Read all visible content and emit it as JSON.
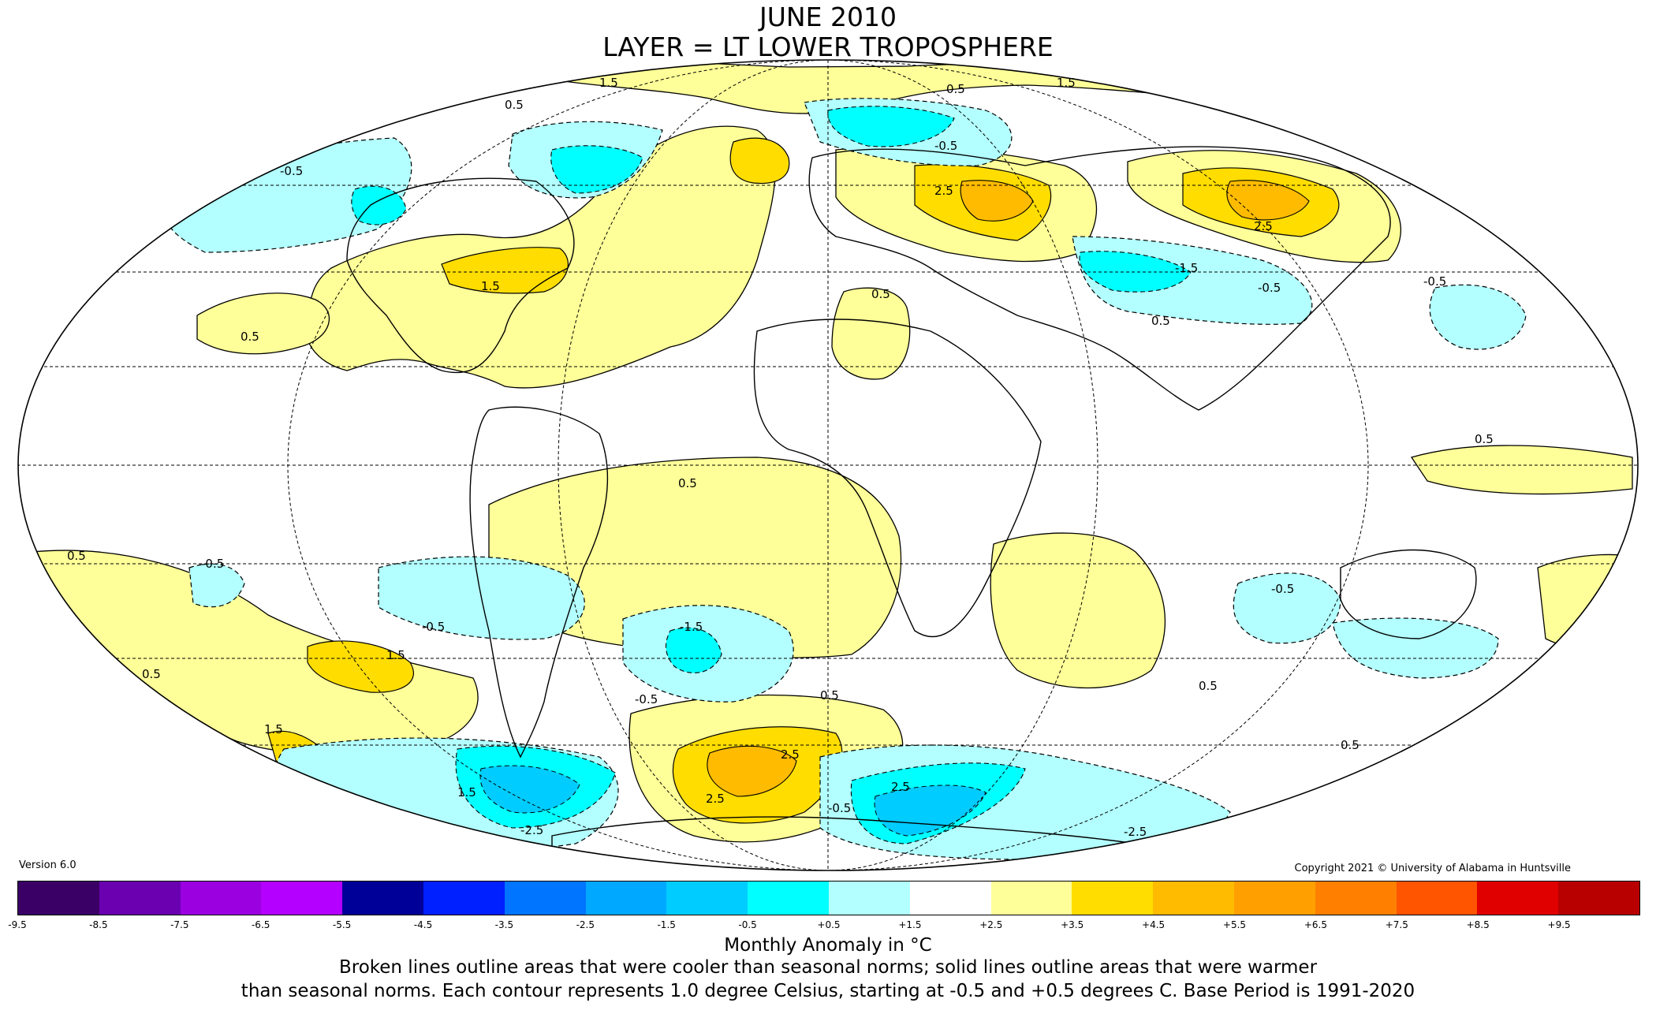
{
  "title_line1": "JUNE 2010",
  "title_line2": "LAYER = LT LOWER TROPOSPHERE",
  "version": "Version 6.0",
  "copyright": "Copyright 2021 © University of Alabama in Huntsville",
  "colorbar": {
    "label": "Monthly Anomaly in °C",
    "ticks": [
      "-9.5",
      "-8.5",
      "-7.5",
      "-6.5",
      "-5.5",
      "-4.5",
      "-3.5",
      "-2.5",
      "-1.5",
      "-0.5",
      "+0.5",
      "+1.5",
      "+2.5",
      "+3.5",
      "+4.5",
      "+5.5",
      "+6.5",
      "+7.5",
      "+8.5",
      "+9.5"
    ],
    "colors": [
      "#3b0066",
      "#6a00b0",
      "#9b00e0",
      "#b400ff",
      "#000098",
      "#0020ff",
      "#0075ff",
      "#00a8ff",
      "#00ccff",
      "#00ffff",
      "#b3ffff",
      "#ffffff",
      "#ffff99",
      "#ffdd00",
      "#ffbb00",
      "#ffa000",
      "#ff8000",
      "#ff5500",
      "#e00000",
      "#b80000"
    ]
  },
  "notes": [
    "Broken lines outline areas that were cooler than seasonal norms; solid lines outline areas that were warmer",
    "than seasonal norms. Each contour represents 1.0 degree Celsius, starting at -0.5 and +0.5 degrees C. Base Period is 1991-2020"
  ],
  "contour_labels": [
    "1.5",
    "0.5",
    "-0.5",
    "-1.5",
    "2.5",
    "-2.5"
  ],
  "map_colors": {
    "warm_0_5": "#ffff99",
    "warm_1_5": "#ffdd00",
    "warm_2_5": "#ffbb00",
    "cool_0_5": "#b3ffff",
    "cool_1_5": "#00ffff",
    "cool_2_5": "#00ccff"
  }
}
